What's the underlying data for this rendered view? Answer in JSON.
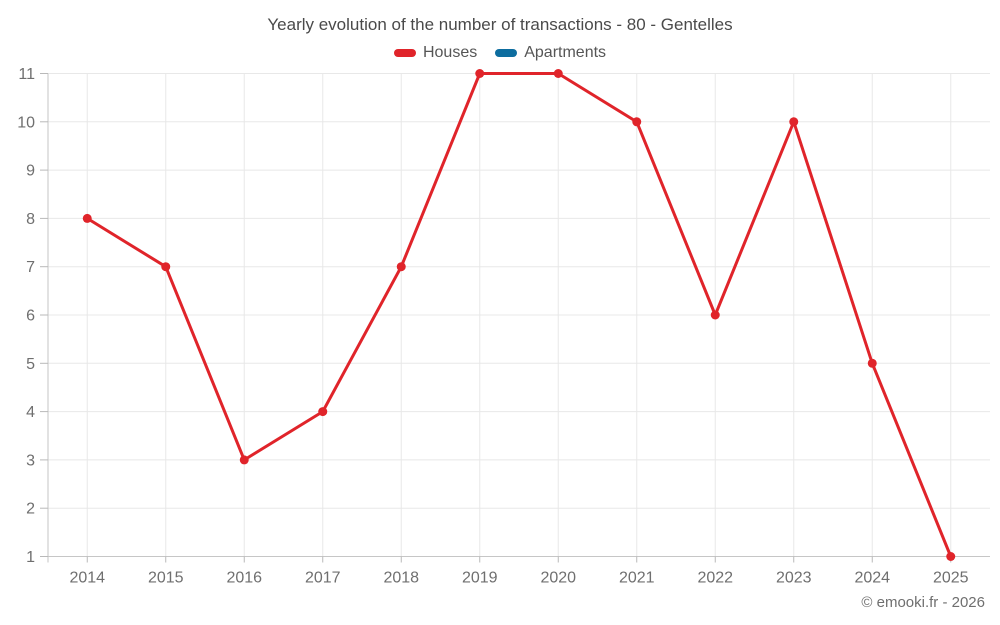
{
  "chart_data": {
    "type": "line",
    "title": "Yearly evolution of the number of transactions - 80 - Gentelles",
    "categories": [
      "2014",
      "2015",
      "2016",
      "2017",
      "2018",
      "2019",
      "2020",
      "2021",
      "2022",
      "2023",
      "2024",
      "2025"
    ],
    "series": [
      {
        "name": "Houses",
        "color": "#e0242a",
        "values": [
          8,
          7,
          3,
          4,
          7,
          11,
          11,
          10,
          6,
          10,
          5,
          1
        ]
      },
      {
        "name": "Apartments",
        "color": "#0d6d9f",
        "values": []
      }
    ],
    "xlabel": "",
    "ylabel": "",
    "ylim": [
      1,
      11
    ],
    "yticks": [
      1,
      2,
      3,
      4,
      5,
      6,
      7,
      8,
      9,
      10,
      11
    ],
    "grid": true,
    "legend_position": "top"
  },
  "footer": {
    "text": "© emooki.fr - 2026"
  },
  "colors": {
    "background": "#ffffff",
    "grid": "#e8e8e8",
    "axis": "#c6c6c6",
    "tick": "#b9b9b9",
    "tick_label": "#6f6f6f",
    "title": "#4a4a4a",
    "legend_label": "#565656",
    "footer": "#6f6f6f"
  }
}
